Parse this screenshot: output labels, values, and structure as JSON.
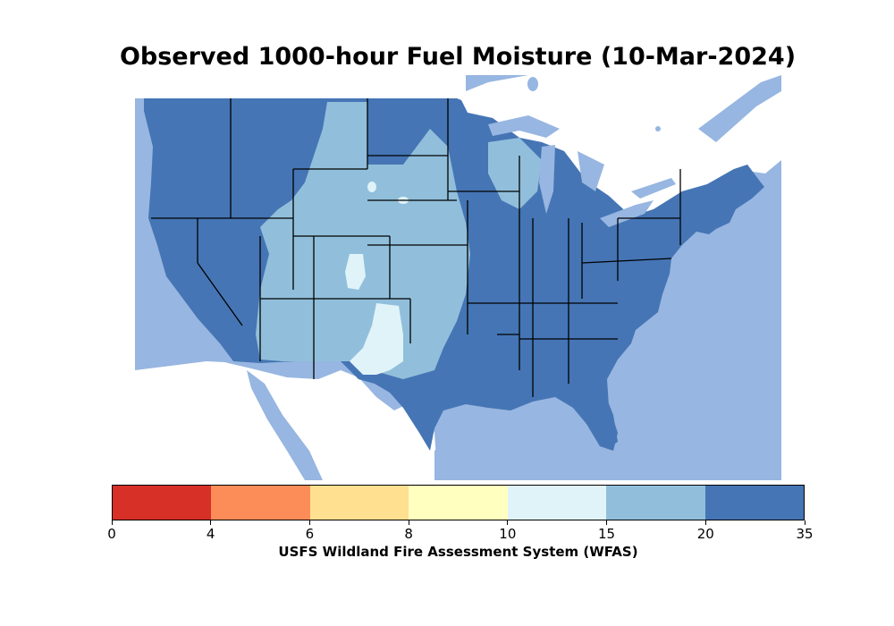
{
  "title": "Observed 1000-hour Fuel Moisture (10-Mar-2024)",
  "colorbar": {
    "label": "USFS Wildland Fire Assessment System (WFAS)",
    "ticks": [
      "0",
      "4",
      "6",
      "8",
      "10",
      "15",
      "20",
      "35"
    ],
    "colors": [
      "#d73027",
      "#fc8d59",
      "#fee090",
      "#ffffbf",
      "#e0f3f8",
      "#91bfdb",
      "#4575b4"
    ]
  },
  "map": {
    "region": "Contiguous United States",
    "background_color": "#97b6e1",
    "land_color_outside_us": "#ffffff",
    "dominant_class_color": "#4575b4"
  }
}
